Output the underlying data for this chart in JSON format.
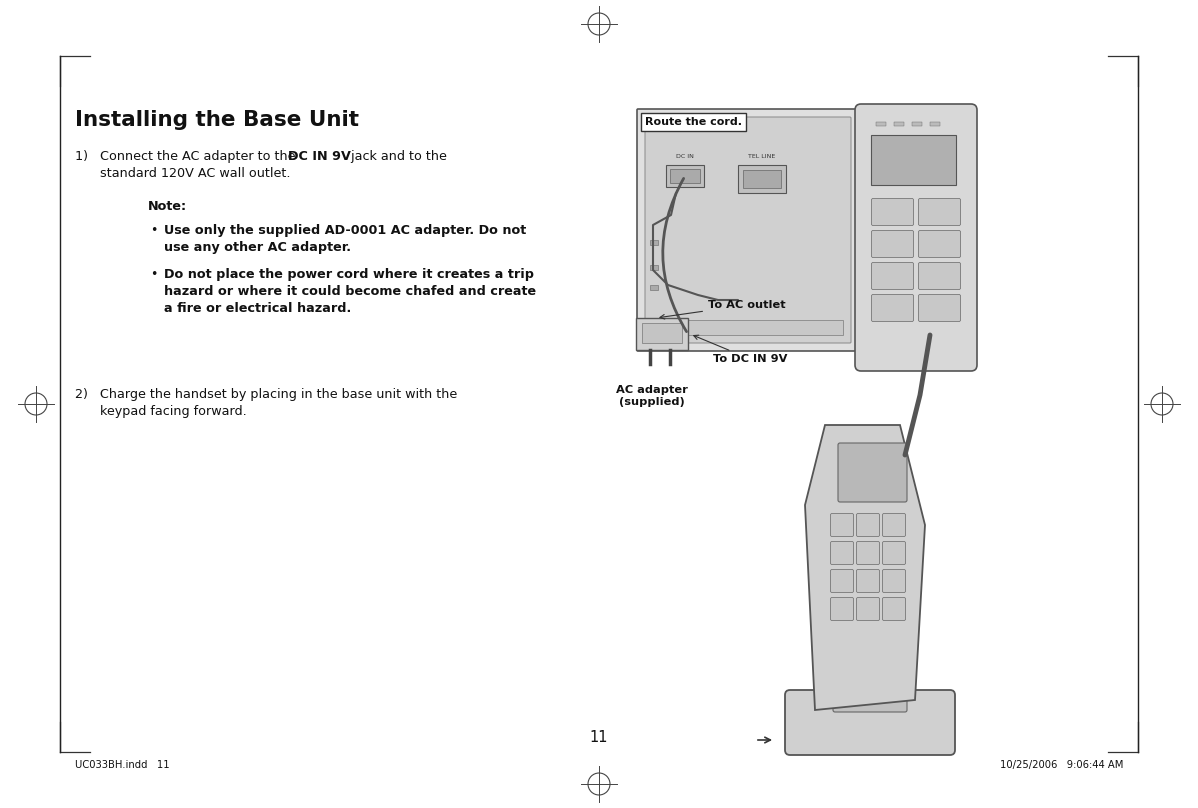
{
  "bg_color": "#ffffff",
  "page_number": "11",
  "title": "Installing the Base Unit",
  "footer_left": "UC033BH.indd   11",
  "footer_right": "10/25/2006   9:06:44 AM",
  "label_route": "Route the cord.",
  "label_ac_outlet": "To AC outlet",
  "label_dc_in": "To DC IN 9V",
  "label_adapter": "AC adapter\n(supplied)",
  "text_color": "#111111",
  "line_color": "#333333",
  "diag_fill": "#d4d4d4",
  "diag_edge": "#444444"
}
